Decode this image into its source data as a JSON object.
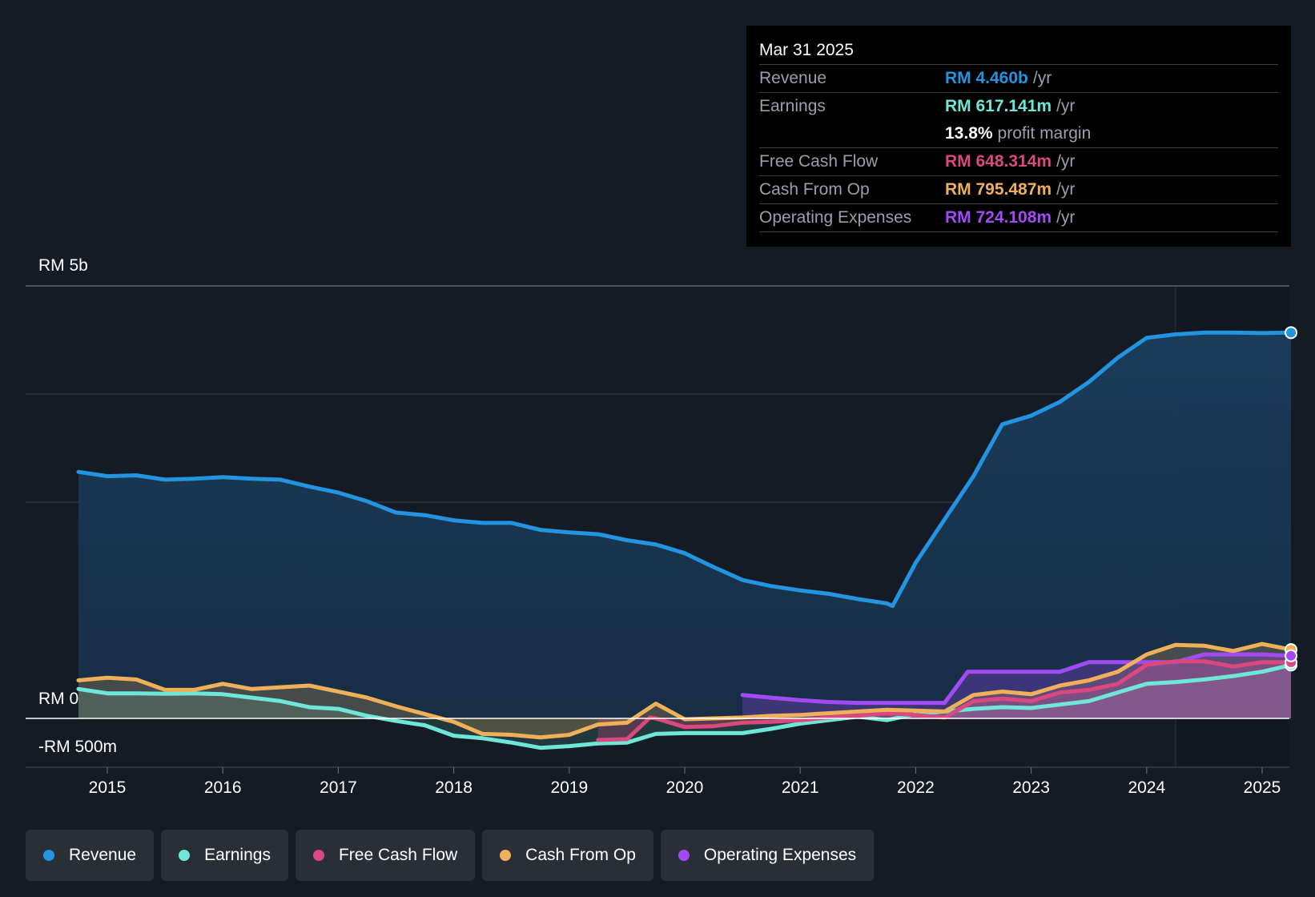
{
  "tooltip": {
    "date": "Mar 31 2025",
    "rows": [
      {
        "label": "Revenue",
        "value": "RM 4.460b",
        "unit": "/yr",
        "color": "#2394df"
      },
      {
        "label": "Earnings",
        "value": "RM 617.141m",
        "unit": "/yr",
        "color": "#6ee7d8"
      },
      {
        "label": "",
        "value": "13.8%",
        "unit": "profit margin",
        "color": "#ffffff"
      },
      {
        "label": "Free Cash Flow",
        "value": "RM 648.314m",
        "unit": "/yr",
        "color": "#d9497f"
      },
      {
        "label": "Cash From Op",
        "value": "RM 795.487m",
        "unit": "/yr",
        "color": "#f0b05a"
      },
      {
        "label": "Operating Expenses",
        "value": "RM 724.108m",
        "unit": "/yr",
        "color": "#a24bf5"
      }
    ]
  },
  "legend": [
    {
      "label": "Revenue",
      "color": "#2394df"
    },
    {
      "label": "Earnings",
      "color": "#6ee7d8"
    },
    {
      "label": "Free Cash Flow",
      "color": "#d9497f"
    },
    {
      "label": "Cash From Op",
      "color": "#f0b05a"
    },
    {
      "label": "Operating Expenses",
      "color": "#a24bf5"
    }
  ],
  "chart_data": {
    "type": "area",
    "title": "",
    "xlabel": "",
    "ylabel": "",
    "x_ticks": [
      "2015",
      "2016",
      "2017",
      "2018",
      "2019",
      "2020",
      "2021",
      "2022",
      "2023",
      "2024",
      "2025"
    ],
    "y_ticks": [
      "RM 5b",
      "RM 0",
      "-RM 500m"
    ],
    "ylim": [
      -500,
      5000
    ],
    "xlim": [
      2014.3,
      2025.25
    ],
    "units": "RM millions",
    "series": [
      {
        "name": "Revenue",
        "color": "#2394df",
        "points": [
          [
            2014.75,
            2850
          ],
          [
            2015.0,
            2800
          ],
          [
            2015.25,
            2810
          ],
          [
            2015.5,
            2760
          ],
          [
            2015.75,
            2770
          ],
          [
            2016.0,
            2790
          ],
          [
            2016.25,
            2770
          ],
          [
            2016.5,
            2760
          ],
          [
            2016.75,
            2680
          ],
          [
            2017.0,
            2610
          ],
          [
            2017.25,
            2510
          ],
          [
            2017.5,
            2380
          ],
          [
            2017.75,
            2350
          ],
          [
            2018.0,
            2290
          ],
          [
            2018.25,
            2260
          ],
          [
            2018.5,
            2260
          ],
          [
            2018.75,
            2180
          ],
          [
            2019.0,
            2150
          ],
          [
            2019.25,
            2130
          ],
          [
            2019.5,
            2060
          ],
          [
            2019.75,
            2010
          ],
          [
            2020.0,
            1910
          ],
          [
            2020.25,
            1750
          ],
          [
            2020.5,
            1600
          ],
          [
            2020.75,
            1530
          ],
          [
            2021.0,
            1480
          ],
          [
            2021.25,
            1440
          ],
          [
            2021.5,
            1380
          ],
          [
            2021.75,
            1330
          ],
          [
            2021.8,
            1300
          ],
          [
            2022.0,
            1800
          ],
          [
            2022.25,
            2300
          ],
          [
            2022.5,
            2800
          ],
          [
            2022.75,
            3400
          ],
          [
            2023.0,
            3500
          ],
          [
            2023.25,
            3660
          ],
          [
            2023.5,
            3890
          ],
          [
            2023.75,
            4170
          ],
          [
            2024.0,
            4400
          ],
          [
            2024.25,
            4440
          ],
          [
            2024.5,
            4460
          ],
          [
            2024.75,
            4460
          ],
          [
            2025.0,
            4455
          ],
          [
            2025.25,
            4460
          ]
        ]
      },
      {
        "name": "Earnings",
        "color": "#6ee7d8",
        "points": [
          [
            2014.75,
            340
          ],
          [
            2015.0,
            290
          ],
          [
            2015.25,
            290
          ],
          [
            2015.5,
            285
          ],
          [
            2015.75,
            290
          ],
          [
            2016.0,
            280
          ],
          [
            2016.25,
            240
          ],
          [
            2016.5,
            200
          ],
          [
            2016.75,
            130
          ],
          [
            2017.0,
            110
          ],
          [
            2017.25,
            30
          ],
          [
            2017.5,
            -30
          ],
          [
            2017.75,
            -80
          ],
          [
            2018.0,
            -200
          ],
          [
            2018.25,
            -230
          ],
          [
            2018.5,
            -280
          ],
          [
            2018.75,
            -340
          ],
          [
            2019.0,
            -320
          ],
          [
            2019.25,
            -290
          ],
          [
            2019.5,
            -280
          ],
          [
            2019.75,
            -180
          ],
          [
            2020.0,
            -170
          ],
          [
            2020.25,
            -170
          ],
          [
            2020.5,
            -170
          ],
          [
            2020.75,
            -120
          ],
          [
            2021.0,
            -60
          ],
          [
            2021.25,
            -20
          ],
          [
            2021.5,
            20
          ],
          [
            2021.75,
            -20
          ],
          [
            2022.0,
            50
          ],
          [
            2022.25,
            80
          ],
          [
            2022.5,
            110
          ],
          [
            2022.75,
            130
          ],
          [
            2023.0,
            120
          ],
          [
            2023.25,
            160
          ],
          [
            2023.5,
            200
          ],
          [
            2023.75,
            300
          ],
          [
            2024.0,
            400
          ],
          [
            2024.25,
            420
          ],
          [
            2024.5,
            450
          ],
          [
            2024.75,
            490
          ],
          [
            2025.0,
            540
          ],
          [
            2025.25,
            617
          ]
        ]
      },
      {
        "name": "Free Cash Flow",
        "color": "#d9497f",
        "points": [
          [
            2019.25,
            -250
          ],
          [
            2019.5,
            -240
          ],
          [
            2019.7,
            10
          ],
          [
            2019.75,
            0
          ],
          [
            2020.0,
            -100
          ],
          [
            2020.25,
            -90
          ],
          [
            2020.5,
            -50
          ],
          [
            2020.75,
            -40
          ],
          [
            2021.0,
            -20
          ],
          [
            2021.25,
            10
          ],
          [
            2021.5,
            30
          ],
          [
            2021.75,
            60
          ],
          [
            2022.0,
            40
          ],
          [
            2022.25,
            10
          ],
          [
            2022.5,
            200
          ],
          [
            2022.75,
            230
          ],
          [
            2023.0,
            200
          ],
          [
            2023.25,
            300
          ],
          [
            2023.5,
            330
          ],
          [
            2023.75,
            400
          ],
          [
            2024.0,
            620
          ],
          [
            2024.25,
            660
          ],
          [
            2024.5,
            660
          ],
          [
            2024.75,
            600
          ],
          [
            2025.0,
            650
          ],
          [
            2025.25,
            648
          ]
        ]
      },
      {
        "name": "Cash From Op",
        "color": "#f0b05a",
        "points": [
          [
            2014.75,
            440
          ],
          [
            2015.0,
            470
          ],
          [
            2015.25,
            450
          ],
          [
            2015.5,
            330
          ],
          [
            2015.75,
            330
          ],
          [
            2016.0,
            400
          ],
          [
            2016.25,
            340
          ],
          [
            2016.5,
            360
          ],
          [
            2016.75,
            380
          ],
          [
            2017.0,
            310
          ],
          [
            2017.25,
            240
          ],
          [
            2017.5,
            140
          ],
          [
            2017.75,
            50
          ],
          [
            2018.0,
            -40
          ],
          [
            2018.25,
            -180
          ],
          [
            2018.5,
            -190
          ],
          [
            2018.75,
            -220
          ],
          [
            2019.0,
            -190
          ],
          [
            2019.25,
            -70
          ],
          [
            2019.5,
            -50
          ],
          [
            2019.75,
            170
          ],
          [
            2020.0,
            -10
          ],
          [
            2020.25,
            0
          ],
          [
            2020.5,
            10
          ],
          [
            2020.75,
            30
          ],
          [
            2021.0,
            40
          ],
          [
            2021.25,
            60
          ],
          [
            2021.5,
            80
          ],
          [
            2021.75,
            100
          ],
          [
            2022.0,
            90
          ],
          [
            2022.25,
            80
          ],
          [
            2022.5,
            270
          ],
          [
            2022.75,
            310
          ],
          [
            2023.0,
            280
          ],
          [
            2023.25,
            380
          ],
          [
            2023.5,
            440
          ],
          [
            2023.75,
            540
          ],
          [
            2024.0,
            740
          ],
          [
            2024.25,
            850
          ],
          [
            2024.5,
            840
          ],
          [
            2024.75,
            780
          ],
          [
            2025.0,
            860
          ],
          [
            2025.25,
            795
          ]
        ]
      },
      {
        "name": "Operating Expenses",
        "color": "#a24bf5",
        "points": [
          [
            2020.5,
            270
          ],
          [
            2020.75,
            240
          ],
          [
            2021.0,
            210
          ],
          [
            2021.25,
            190
          ],
          [
            2021.5,
            180
          ],
          [
            2021.75,
            180
          ],
          [
            2022.0,
            180
          ],
          [
            2022.25,
            180
          ],
          [
            2022.45,
            540
          ],
          [
            2022.75,
            540
          ],
          [
            2023.0,
            540
          ],
          [
            2023.25,
            540
          ],
          [
            2023.5,
            650
          ],
          [
            2023.75,
            650
          ],
          [
            2024.0,
            650
          ],
          [
            2024.25,
            650
          ],
          [
            2024.5,
            740
          ],
          [
            2024.75,
            740
          ],
          [
            2025.0,
            740
          ],
          [
            2025.25,
            724
          ]
        ]
      }
    ]
  }
}
